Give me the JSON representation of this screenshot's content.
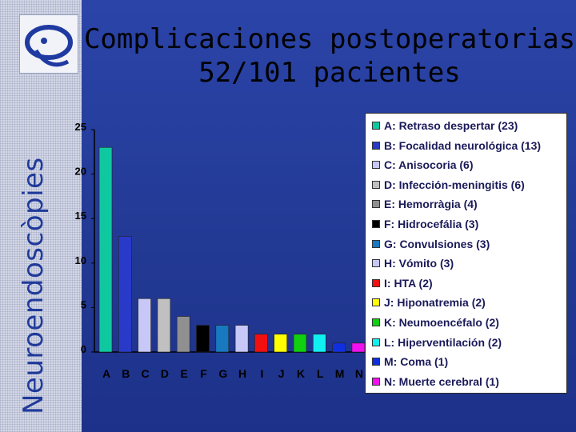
{
  "sidebar": {
    "vertical_text": "Neuroendoscòpies"
  },
  "title": {
    "line1": "Complicaciones postoperatorias",
    "line2": "52/101 pacientes"
  },
  "chart_data": {
    "type": "bar",
    "title": "Complicaciones postoperatorias 52/101 pacientes",
    "categories": [
      "A",
      "B",
      "C",
      "D",
      "E",
      "F",
      "G",
      "H",
      "I",
      "J",
      "K",
      "L",
      "M",
      "N"
    ],
    "values": [
      23,
      13,
      6,
      6,
      4,
      3,
      3,
      3,
      2,
      2,
      2,
      2,
      1,
      1
    ],
    "ylim": [
      0,
      25
    ],
    "yticks": [
      0,
      5,
      10,
      15,
      20,
      25
    ],
    "grid": false,
    "legend_placement": "right",
    "colors": [
      "#10c8a0",
      "#2a3ac8",
      "#c8c8f8",
      "#c0c0c0",
      "#909090",
      "#000000",
      "#1878c0",
      "#c8c8f8",
      "#f01010",
      "#ffff00",
      "#10d010",
      "#10f0f0",
      "#1030e0",
      "#f010f0"
    ],
    "legend": [
      "A: Retraso despertar (23)",
      "B: Focalidad neurológica (13)",
      "C: Anisocoria (6)",
      "D: Infección-meningitis (6)",
      "E: Hemorràgia (4)",
      "F: Hidrocefália (3)",
      "G: Convulsiones (3)",
      "H: Vómito (3)",
      "I: HTA (2)",
      "J: Hiponatremia (2)",
      "K: Neumoencéfalo (2)",
      "L: Hiperventilación (2)",
      "M: Coma (1)",
      "N: Muerte cerebral (1)"
    ]
  }
}
